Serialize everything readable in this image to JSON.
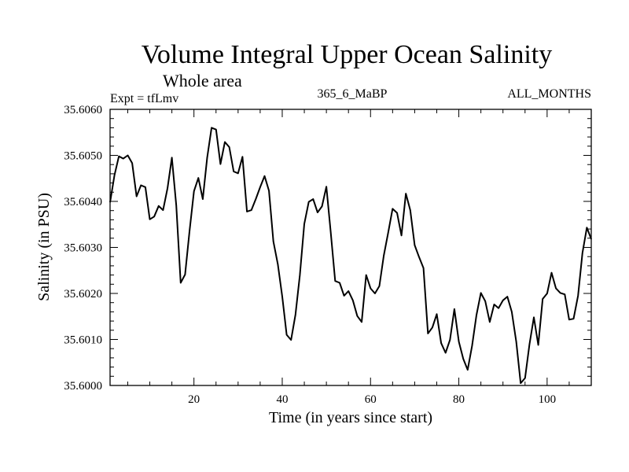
{
  "chart_data": {
    "type": "line",
    "title": "Volume Integral Upper Ocean Salinity",
    "subtitle": "Whole area",
    "experiment": "Expt = tfLmv",
    "run": "365_6_MaBP",
    "period": "ALL_MONTHS",
    "xlabel": "Time (in years since start)",
    "ylabel": "Salinity (in PSU)",
    "xlim": [
      1,
      110
    ],
    "ylim": [
      35.6,
      35.606
    ],
    "x_ticks": [
      20,
      40,
      60,
      80,
      100
    ],
    "y_ticks": [
      35.6,
      35.601,
      35.602,
      35.603,
      35.604,
      35.605,
      35.606
    ],
    "y_tick_labels": [
      "35.6000",
      "35.6010",
      "35.6020",
      "35.6030",
      "35.6040",
      "35.6050",
      "35.6060"
    ],
    "x_tick_labels": [
      "20",
      "40",
      "60",
      "80",
      "100"
    ],
    "grid": false,
    "series": [
      {
        "name": "Salinity",
        "x": [
          1,
          2,
          3,
          4,
          5,
          6,
          7,
          8,
          9,
          10,
          11,
          12,
          13,
          14,
          15,
          16,
          17,
          18,
          19,
          20,
          21,
          22,
          23,
          24,
          25,
          26,
          27,
          28,
          29,
          30,
          31,
          32,
          33,
          34,
          35,
          36,
          37,
          38,
          39,
          40,
          41,
          42,
          43,
          44,
          45,
          46,
          47,
          48,
          49,
          50,
          51,
          52,
          53,
          54,
          55,
          56,
          57,
          58,
          59,
          60,
          61,
          62,
          63,
          64,
          65,
          66,
          67,
          68,
          69,
          70,
          71,
          72,
          73,
          74,
          75,
          76,
          77,
          78,
          79,
          80,
          81,
          82,
          83,
          84,
          85,
          86,
          87,
          88,
          89,
          90,
          91,
          92,
          93,
          94,
          95,
          96,
          97,
          98,
          99,
          100,
          101,
          102,
          103,
          104,
          105,
          106,
          107,
          108,
          109,
          110
        ],
        "values": [
          35.60398,
          35.60457,
          35.60498,
          35.60493,
          35.605,
          35.60483,
          35.60411,
          35.60435,
          35.60431,
          35.60361,
          35.60367,
          35.6039,
          35.60381,
          35.60428,
          35.60495,
          35.60391,
          35.60223,
          35.60241,
          35.60336,
          35.60422,
          35.60451,
          35.60405,
          35.60495,
          35.6056,
          35.60556,
          35.60481,
          35.60529,
          35.60518,
          35.60465,
          35.60461,
          35.60497,
          35.60378,
          35.60381,
          35.60405,
          35.60431,
          35.60455,
          35.60423,
          35.60313,
          35.60263,
          35.60193,
          35.6011,
          35.60099,
          35.60154,
          35.6024,
          35.60351,
          35.60399,
          35.60405,
          35.60376,
          35.60389,
          35.60432,
          35.60332,
          35.60227,
          35.60223,
          35.60195,
          35.60205,
          35.60185,
          35.60151,
          35.60138,
          35.6024,
          35.60211,
          35.602,
          35.60216,
          35.60282,
          35.60332,
          35.60384,
          35.60375,
          35.60326,
          35.60417,
          35.60381,
          35.60305,
          35.60279,
          35.60255,
          35.60113,
          35.60126,
          35.60155,
          35.60092,
          35.60071,
          35.60099,
          35.60166,
          35.60095,
          35.60058,
          35.60034,
          35.60086,
          35.60153,
          35.60201,
          35.60183,
          35.60138,
          35.60176,
          35.60168,
          35.60185,
          35.60193,
          35.6016,
          35.60095,
          35.60005,
          35.60016,
          35.60089,
          35.60148,
          35.60088,
          35.60188,
          35.602,
          35.60245,
          35.60211,
          35.60201,
          35.60198,
          35.60143,
          35.60145,
          35.60195,
          35.60288,
          35.60343,
          35.60318
        ]
      }
    ]
  }
}
